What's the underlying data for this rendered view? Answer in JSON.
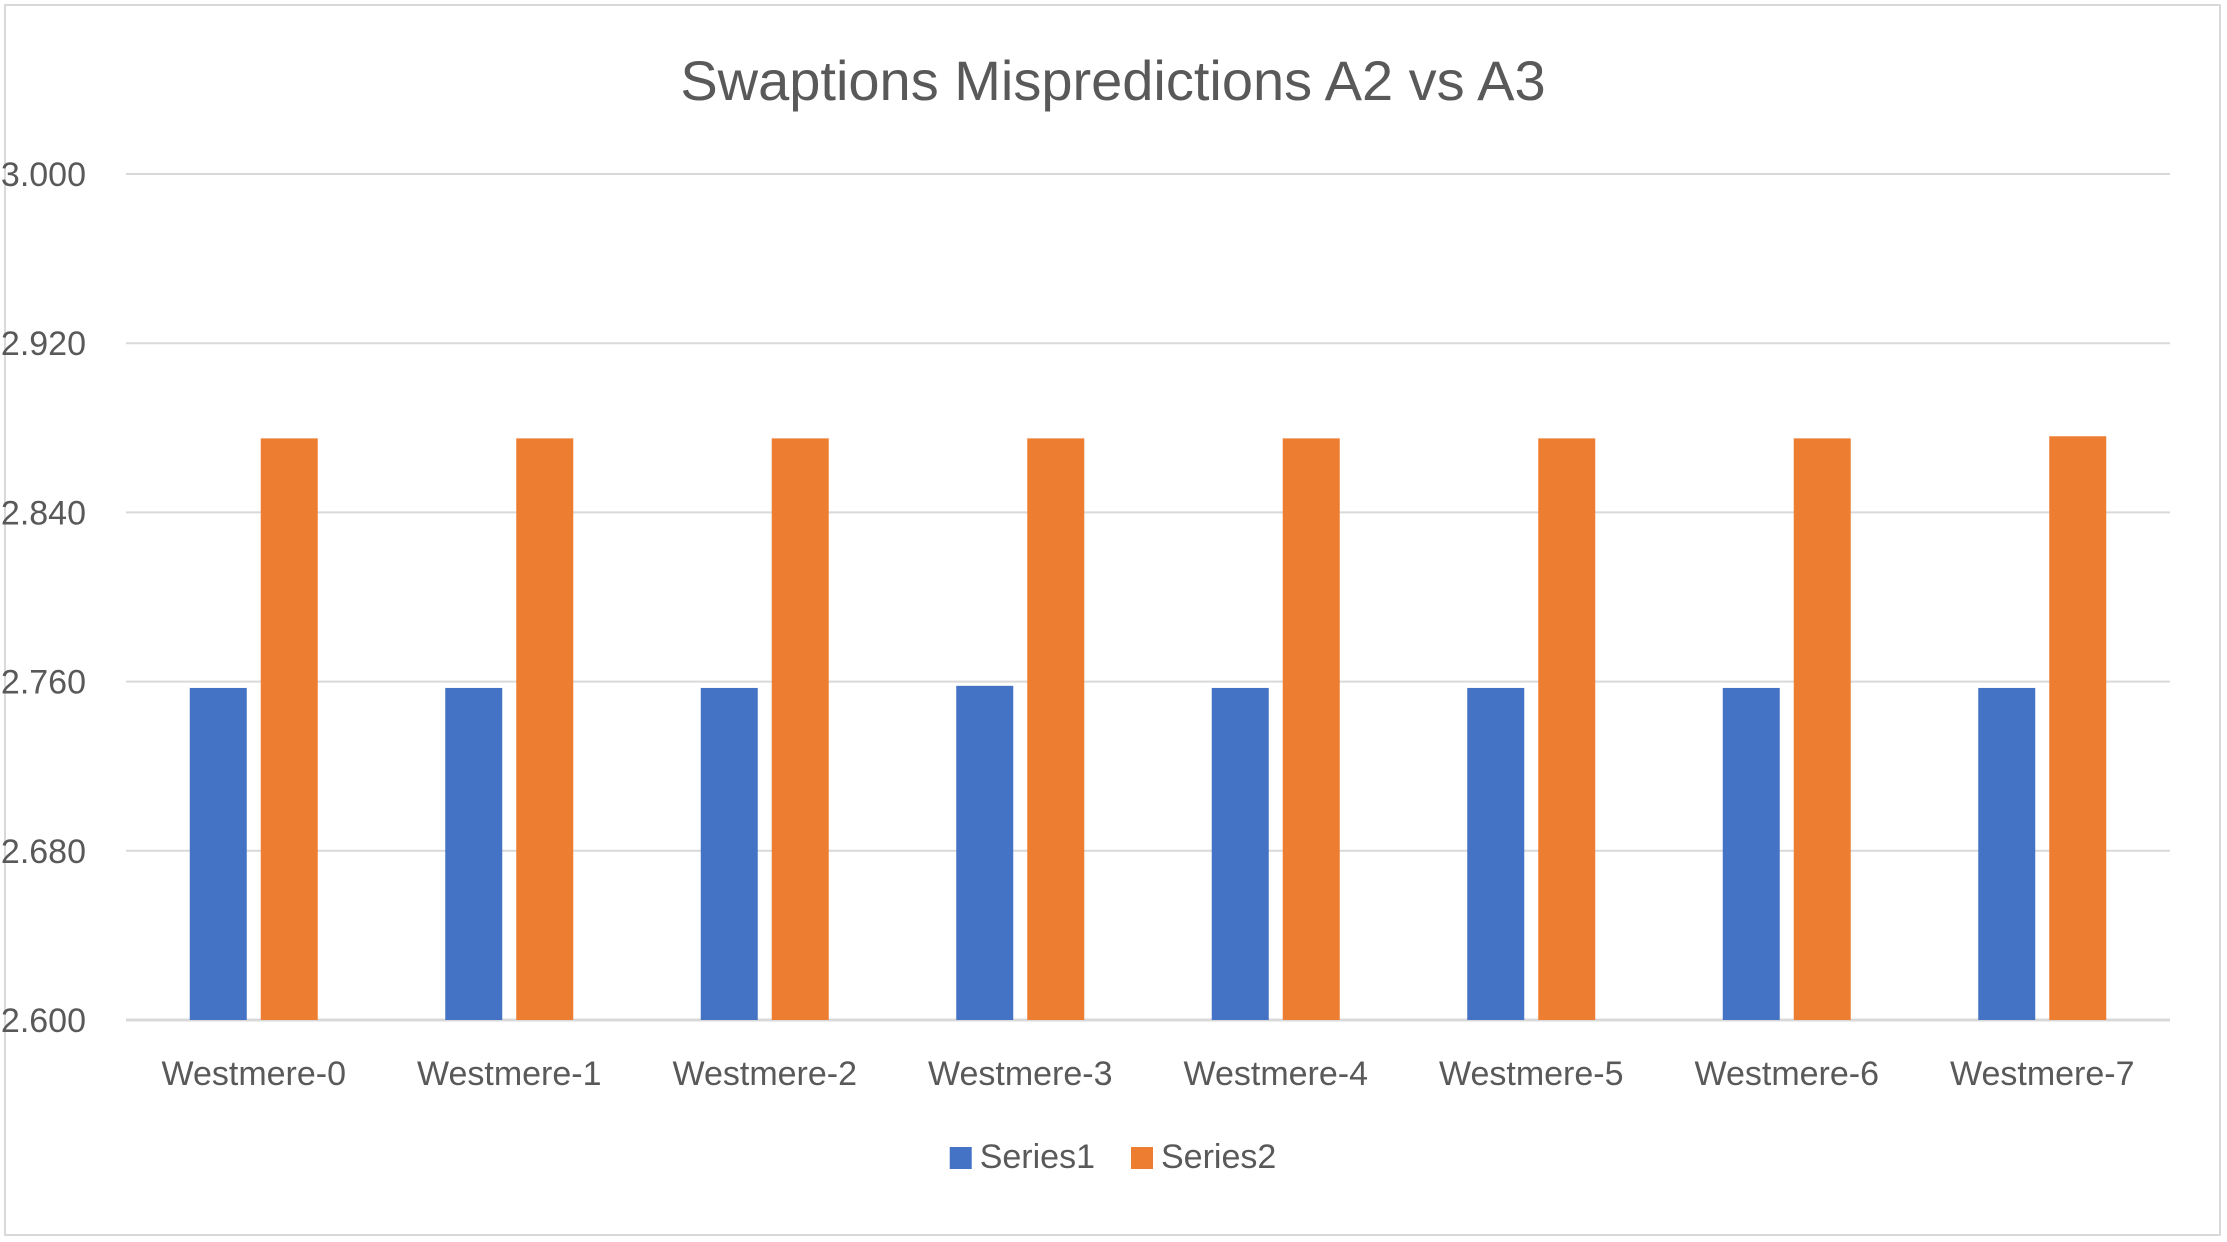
{
  "chart_data": {
    "type": "bar",
    "title": "Swaptions Mispredictions A2 vs A3",
    "xlabel": "",
    "ylabel": "",
    "categories": [
      "Westmere-0",
      "Westmere-1",
      "Westmere-2",
      "Westmere-3",
      "Westmere-4",
      "Westmere-5",
      "Westmere-6",
      "Westmere-7"
    ],
    "series": [
      {
        "name": "Series1",
        "color": "#4472c4",
        "values": [
          2.757,
          2.757,
          2.757,
          2.758,
          2.757,
          2.757,
          2.757,
          2.757
        ]
      },
      {
        "name": "Series2",
        "color": "#ed7d31",
        "values": [
          2.875,
          2.875,
          2.875,
          2.875,
          2.875,
          2.875,
          2.875,
          2.876
        ]
      }
    ],
    "ylim": [
      2.6,
      3.0
    ],
    "yticks": [
      "2.600",
      "2.680",
      "2.760",
      "2.840",
      "2.920",
      "3.000"
    ],
    "grid": true,
    "legend_position": "bottom"
  }
}
